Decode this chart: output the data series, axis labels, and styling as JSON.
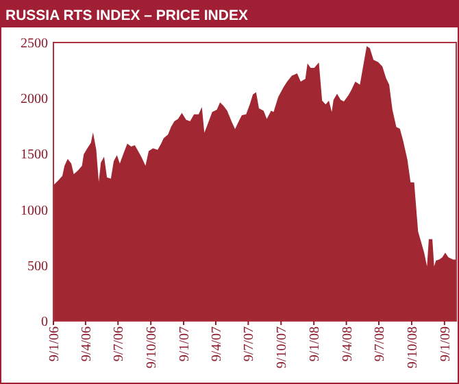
{
  "chart_data": {
    "type": "area",
    "title": "RUSSIA RTS INDEX – PRICE INDEX",
    "color": "#a12833",
    "grid": false,
    "x": [
      "2006-01-09",
      "2006-01-21",
      "2006-02-03",
      "2006-02-09",
      "2006-02-18",
      "2006-02-28",
      "2006-03-07",
      "2006-03-19",
      "2006-03-30",
      "2006-04-04",
      "2006-04-14",
      "2006-04-24",
      "2006-04-30",
      "2006-05-09",
      "2006-05-16",
      "2006-05-22",
      "2006-05-31",
      "2006-06-08",
      "2006-06-19",
      "2006-06-27",
      "2006-07-06",
      "2006-07-14",
      "2006-07-25",
      "2006-08-04",
      "2006-08-15",
      "2006-08-25",
      "2006-09-05",
      "2006-09-14",
      "2006-09-24",
      "2006-10-03",
      "2006-10-15",
      "2006-10-28",
      "2006-11-06",
      "2006-11-14",
      "2006-11-26",
      "2006-12-05",
      "2006-12-14",
      "2006-12-24",
      "2007-01-04",
      "2007-01-16",
      "2007-01-27",
      "2007-02-07",
      "2007-02-20",
      "2007-03-01",
      "2007-03-08",
      "2007-03-17",
      "2007-03-30",
      "2007-04-12",
      "2007-04-21",
      "2007-05-01",
      "2007-05-11",
      "2007-05-24",
      "2007-06-02",
      "2007-06-10",
      "2007-06-21",
      "2007-07-03",
      "2007-07-14",
      "2007-07-22",
      "2007-07-31",
      "2007-08-08",
      "2007-08-21",
      "2007-08-30",
      "2007-09-11",
      "2007-09-18",
      "2007-10-01",
      "2007-10-16",
      "2007-10-26",
      "2007-11-08",
      "2007-11-23",
      "2007-12-03",
      "2007-12-16",
      "2007-12-22",
      "2007-12-31",
      "2008-01-10",
      "2008-01-23",
      "2008-02-01",
      "2008-02-11",
      "2008-02-20",
      "2008-02-28",
      "2008-03-04",
      "2008-03-14",
      "2008-03-24",
      "2008-04-02",
      "2008-04-15",
      "2008-04-24",
      "2008-05-04",
      "2008-05-17",
      "2008-05-27",
      "2008-06-05",
      "2008-06-14",
      "2008-06-24",
      "2008-07-07",
      "2008-07-19",
      "2008-07-29",
      "2008-08-07",
      "2008-08-16",
      "2008-08-27",
      "2008-09-06",
      "2008-09-15",
      "2008-09-27",
      "2008-10-06",
      "2008-10-16",
      "2008-10-27",
      "2008-11-04",
      "2008-11-13",
      "2008-11-21",
      "2008-11-26",
      "2008-12-06",
      "2008-12-11",
      "2008-12-16",
      "2008-12-25",
      "2009-01-03",
      "2009-01-11",
      "2009-01-20",
      "2009-02-02",
      "2009-02-11"
    ],
    "values": [
      1219,
      1256,
      1302,
      1393,
      1455,
      1413,
      1318,
      1351,
      1393,
      1496,
      1550,
      1599,
      1694,
      1537,
      1248,
      1422,
      1475,
      1289,
      1277,
      1434,
      1488,
      1413,
      1508,
      1591,
      1566,
      1578,
      1517,
      1463,
      1393,
      1525,
      1550,
      1537,
      1587,
      1641,
      1674,
      1744,
      1793,
      1814,
      1868,
      1806,
      1793,
      1855,
      1855,
      1921,
      1690,
      1764,
      1876,
      1897,
      1963,
      1930,
      1888,
      1785,
      1723,
      1777,
      1847,
      1855,
      1950,
      2033,
      2054,
      1909,
      1888,
      1814,
      1888,
      1876,
      2011,
      2100,
      2149,
      2202,
      2223,
      2149,
      2174,
      2312,
      2272,
      2272,
      2321,
      1978,
      1945,
      1978,
      1876,
      1986,
      2039,
      1986,
      1970,
      2027,
      2080,
      2149,
      2121,
      2304,
      2467,
      2447,
      2345,
      2325,
      2284,
      2182,
      2121,
      1896,
      1741,
      1725,
      1619,
      1448,
      1244,
      1244,
      803,
      714,
      612,
      489,
      734,
      734,
      489,
      542,
      551,
      571,
      612,
      571,
      551,
      551
    ],
    "xlim": [
      "2006-01-09",
      "2009-02-11"
    ],
    "xticks": [
      {
        "value": "2006-01-09",
        "label": "9/1/06"
      },
      {
        "value": "2006-04-09",
        "label": "9/4/06"
      },
      {
        "value": "2006-07-09",
        "label": "9/7/06"
      },
      {
        "value": "2006-10-09",
        "label": "9/10/06"
      },
      {
        "value": "2007-01-09",
        "label": "9/1/07"
      },
      {
        "value": "2007-04-09",
        "label": "9/4/07"
      },
      {
        "value": "2007-07-09",
        "label": "9/7/07"
      },
      {
        "value": "2007-10-09",
        "label": "9/10/07"
      },
      {
        "value": "2008-01-09",
        "label": "9/1/08"
      },
      {
        "value": "2008-04-09",
        "label": "9/4/08"
      },
      {
        "value": "2008-07-09",
        "label": "9/7/08"
      },
      {
        "value": "2008-10-09",
        "label": "9/10/08"
      },
      {
        "value": "2009-01-09",
        "label": "9/1/09"
      }
    ],
    "ylim": [
      0,
      2500
    ],
    "yticks": [
      0,
      500,
      1000,
      1500,
      2000,
      2500
    ]
  }
}
